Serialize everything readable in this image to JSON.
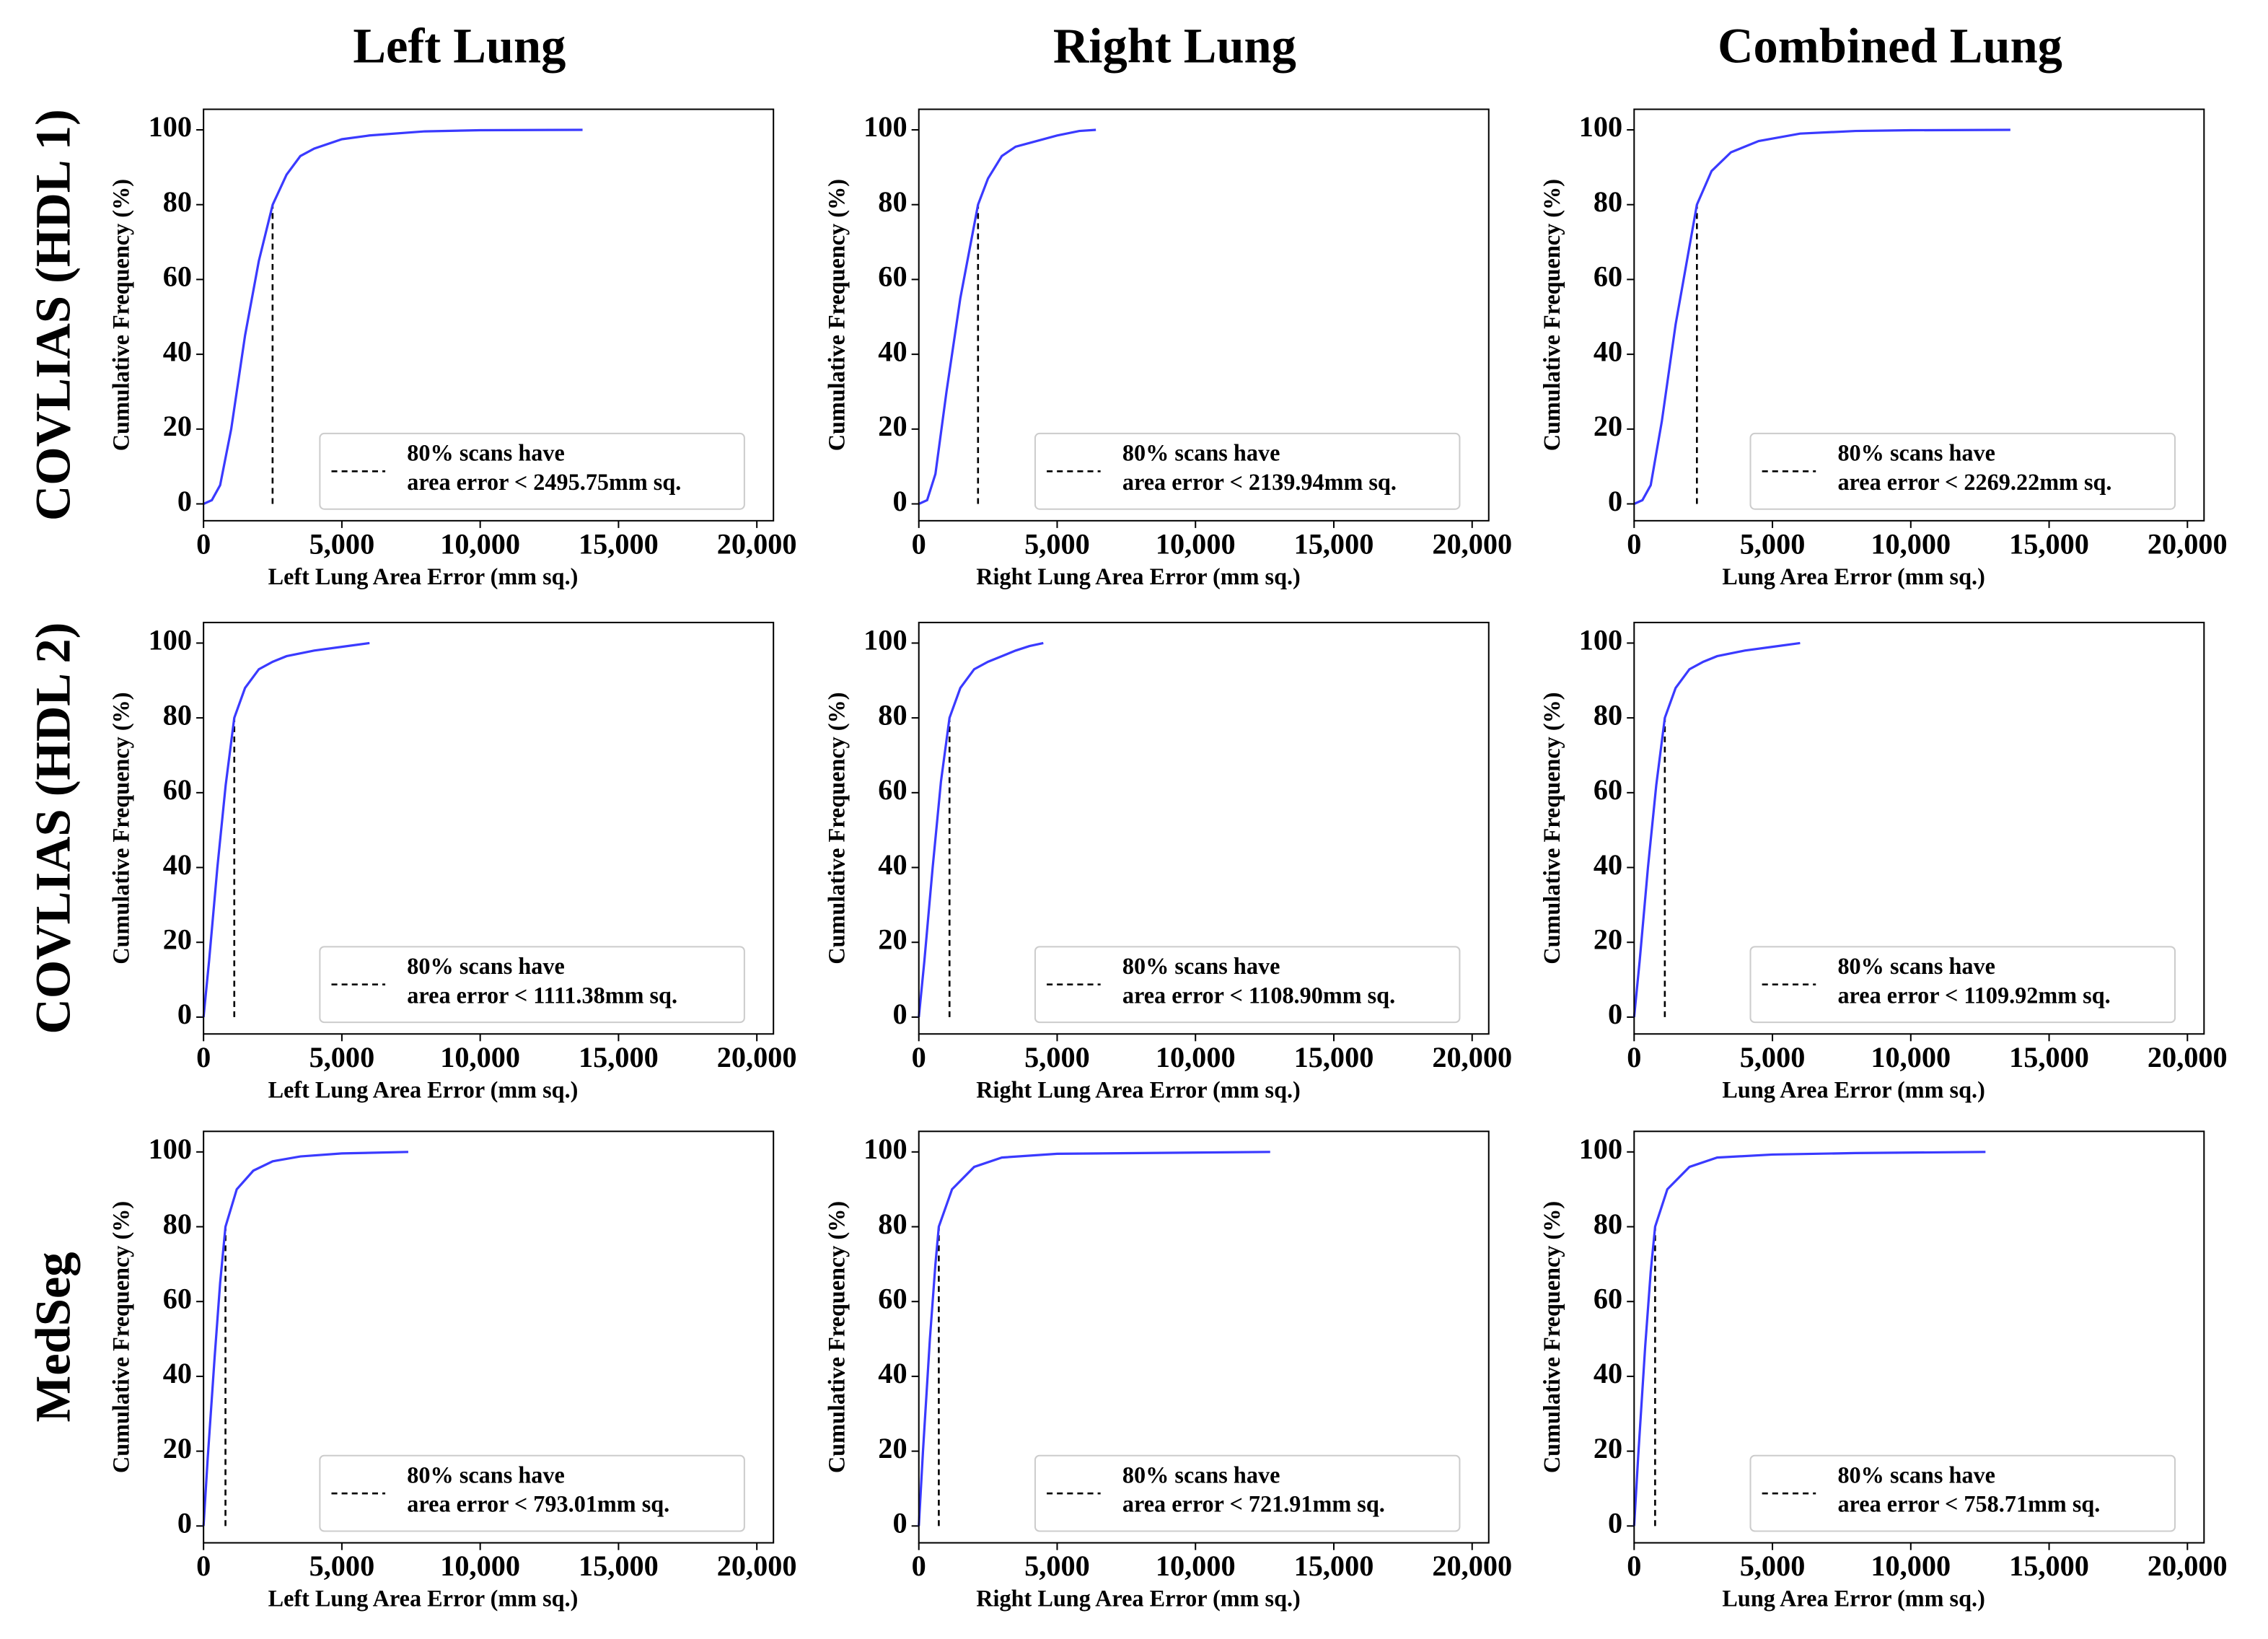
{
  "column_titles": [
    "Left Lung",
    "Right Lung",
    "Combined Lung"
  ],
  "row_labels": [
    "COVLIAS (HDL 1)",
    "COVLIAS (HDL 2)",
    "MedSeg"
  ],
  "chart_data": [
    {
      "type": "line",
      "xlabel": "Left Lung Area Error (mm sq.)",
      "ylabel": "Cumulative Frequency (%)",
      "x": [
        0,
        300,
        600,
        1000,
        1500,
        2000,
        2500,
        3000,
        3500,
        4000,
        5000,
        6000,
        8000,
        10000,
        13700
      ],
      "series": [
        {
          "color": "#3a3aff",
          "values": [
            0,
            1,
            5,
            20,
            45,
            65,
            80,
            88,
            93,
            95,
            97.5,
            98.5,
            99.6,
            99.9,
            100
          ]
        }
      ],
      "reference_line": {
        "x": 2495.75,
        "y": [
          0,
          80
        ],
        "color": "#000000"
      },
      "legend": {
        "lines": [
          "80% scans have",
          "area error < 2495.75mm sq."
        ],
        "location": "lower right"
      },
      "xlim": [
        0,
        20600
      ],
      "ylim": [
        -4.5,
        105.5
      ],
      "xticks": [
        0,
        {
          "value": 5000,
          "label": "5,000"
        },
        {
          "value": 10000,
          "label": "10,000"
        },
        {
          "value": 15000,
          "label": "15,000"
        },
        {
          "value": 20000,
          "label": "20,000"
        }
      ],
      "yticks": [
        0,
        20,
        40,
        60,
        80,
        100
      ]
    },
    {
      "type": "line",
      "xlabel": "Right Lung Area Error (mm sq.)",
      "ylabel": "Cumulative Frequency (%)",
      "x": [
        0,
        300,
        600,
        1000,
        1500,
        2140,
        2500,
        3000,
        3500,
        4000,
        5000,
        5800,
        6400
      ],
      "series": [
        {
          "color": "#3a3aff",
          "values": [
            0,
            1,
            8,
            30,
            55,
            80,
            87,
            93,
            95.5,
            96.5,
            98.5,
            99.7,
            100
          ]
        }
      ],
      "reference_line": {
        "x": 2139.94,
        "y": [
          0,
          80
        ],
        "color": "#000000"
      },
      "legend": {
        "lines": [
          "80% scans have",
          "area error < 2139.94mm sq."
        ],
        "location": "lower right"
      },
      "xlim": [
        0,
        20600
      ],
      "ylim": [
        -4.5,
        105.5
      ],
      "xticks": [
        0,
        {
          "value": 5000,
          "label": "5,000"
        },
        {
          "value": 10000,
          "label": "10,000"
        },
        {
          "value": 15000,
          "label": "15,000"
        },
        {
          "value": 20000,
          "label": "20,000"
        }
      ],
      "yticks": [
        0,
        20,
        40,
        60,
        80,
        100
      ]
    },
    {
      "type": "line",
      "xlabel": "Lung Area Error (mm sq.)",
      "ylabel": "Cumulative Frequency (%)",
      "x": [
        0,
        300,
        600,
        1000,
        1500,
        2269,
        2800,
        3500,
        4500,
        6000,
        8000,
        10000,
        13600
      ],
      "series": [
        {
          "color": "#3a3aff",
          "values": [
            0,
            1,
            5,
            22,
            48,
            80,
            89,
            94,
            97,
            99,
            99.7,
            99.9,
            100
          ]
        }
      ],
      "reference_line": {
        "x": 2269.22,
        "y": [
          0,
          80
        ],
        "color": "#000000"
      },
      "legend": {
        "lines": [
          "80% scans have",
          "area error < 2269.22mm sq."
        ],
        "location": "lower right"
      },
      "xlim": [
        0,
        20600
      ],
      "ylim": [
        -4.5,
        105.5
      ],
      "xticks": [
        0,
        {
          "value": 5000,
          "label": "5,000"
        },
        {
          "value": 10000,
          "label": "10,000"
        },
        {
          "value": 15000,
          "label": "15,000"
        },
        {
          "value": 20000,
          "label": "20,000"
        }
      ],
      "yticks": [
        0,
        20,
        40,
        60,
        80,
        100
      ]
    },
    {
      "type": "line",
      "xlabel": "Left Lung Area Error (mm sq.)",
      "ylabel": "Cumulative Frequency (%)",
      "x": [
        0,
        200,
        500,
        800,
        1111,
        1500,
        2000,
        2500,
        3000,
        4000,
        5000,
        6000
      ],
      "series": [
        {
          "color": "#3a3aff",
          "values": [
            0,
            15,
            40,
            62,
            80,
            88,
            93,
            95,
            96.5,
            98,
            99,
            100
          ]
        }
      ],
      "reference_line": {
        "x": 1111.38,
        "y": [
          0,
          80
        ],
        "color": "#000000"
      },
      "legend": {
        "lines": [
          "80% scans have",
          "area error < 1111.38mm sq."
        ],
        "location": "lower right"
      },
      "xlim": [
        0,
        20600
      ],
      "ylim": [
        -4.5,
        105.5
      ],
      "xticks": [
        0,
        {
          "value": 5000,
          "label": "5,000"
        },
        {
          "value": 10000,
          "label": "10,000"
        },
        {
          "value": 15000,
          "label": "15,000"
        },
        {
          "value": 20000,
          "label": "20,000"
        }
      ],
      "yticks": [
        0,
        20,
        40,
        60,
        80,
        100
      ]
    },
    {
      "type": "line",
      "xlabel": "Right Lung Area Error (mm sq.)",
      "ylabel": "Cumulative Frequency (%)",
      "x": [
        0,
        200,
        500,
        800,
        1109,
        1500,
        2000,
        2500,
        3000,
        3500,
        4000,
        4500
      ],
      "series": [
        {
          "color": "#3a3aff",
          "values": [
            0,
            15,
            40,
            63,
            80,
            88,
            93,
            95,
            96.5,
            98,
            99.2,
            100
          ]
        }
      ],
      "reference_line": {
        "x": 1108.9,
        "y": [
          0,
          80
        ],
        "color": "#000000"
      },
      "legend": {
        "lines": [
          "80% scans have",
          "area error < 1108.90mm sq."
        ],
        "location": "lower right"
      },
      "xlim": [
        0,
        20600
      ],
      "ylim": [
        -4.5,
        105.5
      ],
      "xticks": [
        0,
        {
          "value": 5000,
          "label": "5,000"
        },
        {
          "value": 10000,
          "label": "10,000"
        },
        {
          "value": 15000,
          "label": "15,000"
        },
        {
          "value": 20000,
          "label": "20,000"
        }
      ],
      "yticks": [
        0,
        20,
        40,
        60,
        80,
        100
      ]
    },
    {
      "type": "line",
      "xlabel": "Lung Area Error (mm sq.)",
      "ylabel": "Cumulative Frequency (%)",
      "x": [
        0,
        200,
        500,
        800,
        1110,
        1500,
        2000,
        2500,
        3000,
        4000,
        5000,
        6000
      ],
      "series": [
        {
          "color": "#3a3aff",
          "values": [
            0,
            15,
            40,
            62,
            80,
            88,
            93,
            95,
            96.5,
            98,
            99,
            100
          ]
        }
      ],
      "reference_line": {
        "x": 1109.92,
        "y": [
          0,
          80
        ],
        "color": "#000000"
      },
      "legend": {
        "lines": [
          "80% scans have",
          "area error < 1109.92mm sq."
        ],
        "location": "lower right"
      },
      "xlim": [
        0,
        20600
      ],
      "ylim": [
        -4.5,
        105.5
      ],
      "xticks": [
        0,
        {
          "value": 5000,
          "label": "5,000"
        },
        {
          "value": 10000,
          "label": "10,000"
        },
        {
          "value": 15000,
          "label": "15,000"
        },
        {
          "value": 20000,
          "label": "20,000"
        }
      ],
      "yticks": [
        0,
        20,
        40,
        60,
        80,
        100
      ]
    },
    {
      "type": "line",
      "xlabel": "Left Lung Area Error (mm sq.)",
      "ylabel": "Cumulative Frequency (%)",
      "x": [
        0,
        150,
        400,
        600,
        793,
        1200,
        1800,
        2500,
        3500,
        5000,
        7400
      ],
      "series": [
        {
          "color": "#3a3aff",
          "values": [
            0,
            18,
            45,
            65,
            80,
            90,
            95,
            97.5,
            98.8,
            99.6,
            100
          ]
        }
      ],
      "reference_line": {
        "x": 793.01,
        "y": [
          0,
          80
        ],
        "color": "#000000"
      },
      "legend": {
        "lines": [
          "80% scans have",
          "area error < 793.01mm sq."
        ],
        "location": "lower right"
      },
      "xlim": [
        0,
        20600
      ],
      "ylim": [
        -4.5,
        105.5
      ],
      "xticks": [
        0,
        {
          "value": 5000,
          "label": "5,000"
        },
        {
          "value": 10000,
          "label": "10,000"
        },
        {
          "value": 15000,
          "label": "15,000"
        },
        {
          "value": 20000,
          "label": "20,000"
        }
      ],
      "yticks": [
        0,
        20,
        40,
        60,
        80,
        100
      ]
    },
    {
      "type": "line",
      "xlabel": "Right Lung Area Error (mm sq.)",
      "ylabel": "Cumulative Frequency (%)",
      "x": [
        0,
        150,
        400,
        600,
        722,
        1200,
        2000,
        3000,
        5000,
        8000,
        12700
      ],
      "series": [
        {
          "color": "#3a3aff",
          "values": [
            0,
            20,
            50,
            70,
            80,
            90,
            96,
            98.5,
            99.5,
            99.7,
            100
          ]
        }
      ],
      "reference_line": {
        "x": 721.91,
        "y": [
          0,
          80
        ],
        "color": "#000000"
      },
      "legend": {
        "lines": [
          "80% scans have",
          "area error < 721.91mm sq."
        ],
        "location": "lower right"
      },
      "xlim": [
        0,
        20600
      ],
      "ylim": [
        -4.5,
        105.5
      ],
      "xticks": [
        0,
        {
          "value": 5000,
          "label": "5,000"
        },
        {
          "value": 10000,
          "label": "10,000"
        },
        {
          "value": 15000,
          "label": "15,000"
        },
        {
          "value": 20000,
          "label": "20,000"
        }
      ],
      "yticks": [
        0,
        20,
        40,
        60,
        80,
        100
      ]
    },
    {
      "type": "line",
      "xlabel": "Lung Area Error (mm sq.)",
      "ylabel": "Cumulative Frequency (%)",
      "x": [
        0,
        150,
        400,
        600,
        759,
        1200,
        2000,
        3000,
        5000,
        8000,
        12700
      ],
      "series": [
        {
          "color": "#3a3aff",
          "values": [
            0,
            19,
            48,
            68,
            80,
            90,
            96,
            98.5,
            99.3,
            99.7,
            100
          ]
        }
      ],
      "reference_line": {
        "x": 758.71,
        "y": [
          0,
          80
        ],
        "color": "#000000"
      },
      "legend": {
        "lines": [
          "80% scans have",
          "area error < 758.71mm sq."
        ],
        "location": "lower right"
      },
      "xlim": [
        0,
        20600
      ],
      "ylim": [
        -4.5,
        105.5
      ],
      "xticks": [
        0,
        {
          "value": 5000,
          "label": "5,000"
        },
        {
          "value": 10000,
          "label": "10,000"
        },
        {
          "value": 15000,
          "label": "15,000"
        },
        {
          "value": 20000,
          "label": "20,000"
        }
      ],
      "yticks": [
        0,
        20,
        40,
        60,
        80,
        100
      ]
    }
  ]
}
